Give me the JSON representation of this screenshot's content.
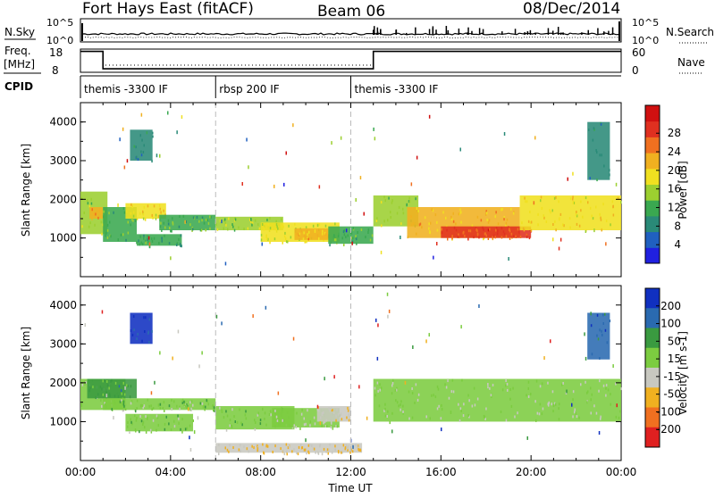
{
  "header": {
    "title": "Fort Hays East (fitACF)",
    "beam": "Beam 06",
    "date": "08/Dec/2014"
  },
  "top_panels": {
    "nsky_label": "N.Sky",
    "nsky_ticks": [
      "10^5",
      "10^0"
    ],
    "nsearch_label": "N.Search",
    "nsearch_ticks": [
      "10^5",
      "10^0"
    ],
    "freq_label": "Freq.",
    "freq_unit": "[MHz]",
    "freq_ticks": [
      "18",
      "8"
    ],
    "nave_label": "Nave",
    "nave_ticks": [
      "60",
      "0"
    ],
    "cpid_label": "CPID",
    "cpid_segments": [
      {
        "label": "themis -3300 IF",
        "start_hour": 0,
        "end_hour": 6
      },
      {
        "label": "rbsp 200 IF",
        "start_hour": 6,
        "end_hour": 12
      },
      {
        "label": "themis -3300 IF",
        "start_hour": 12,
        "end_hour": 24
      }
    ],
    "freq_series_hours": [
      0,
      1,
      1,
      13,
      13,
      24
    ],
    "freq_series_mhz": [
      17,
      17,
      9.5,
      9.5,
      17,
      17
    ]
  },
  "power_panel": {
    "ylabel": "Slant Range [km]",
    "yticks": [
      "1000",
      "2000",
      "3000",
      "4000"
    ],
    "colorbar_label": "Power [dB]",
    "colorbar_ticks": [
      "4",
      "8",
      "12",
      "16",
      "20",
      "24",
      "28"
    ],
    "colorbar_colors": [
      "#2020e0",
      "#2060c0",
      "#2a8a78",
      "#3aa850",
      "#9ccf30",
      "#f0e020",
      "#f0b020",
      "#f07020",
      "#e03020",
      "#d01010"
    ]
  },
  "velocity_panel": {
    "ylabel": "Slant Range [km]",
    "yticks": [
      "1000",
      "2000",
      "3000",
      "4000"
    ],
    "colorbar_label": "Velocity [m s-1]",
    "colorbar_ticks": [
      "200",
      "100",
      "50",
      "15",
      "-15",
      "-50",
      "-100",
      "-200"
    ],
    "colorbar_colors": [
      "#1030c0",
      "#2a6ab0",
      "#3a9a40",
      "#7ccc40",
      "#c8c8c0",
      "#f0b020",
      "#f07020",
      "#e02020"
    ]
  },
  "x_axis": {
    "xlabel": "Time UT",
    "xticks": [
      "00:00",
      "04:00",
      "08:00",
      "12:00",
      "16:00",
      "20:00",
      "00:00"
    ]
  },
  "chart_data": {
    "type": "heatmap",
    "x_unit": "hours UT",
    "xlim": [
      0,
      24
    ],
    "ylim": [
      0,
      4500
    ],
    "series": [
      {
        "name": "Power [dB]",
        "cells": [
          {
            "x0": 0,
            "x1": 1.2,
            "y0": 1100,
            "y1": 2200,
            "value": 14
          },
          {
            "x0": 0.4,
            "x1": 1.0,
            "y0": 1500,
            "y1": 1800,
            "value": 22
          },
          {
            "x0": 1.0,
            "x1": 2.5,
            "y0": 900,
            "y1": 1800,
            "value": 12
          },
          {
            "x0": 2.0,
            "x1": 3.8,
            "y0": 1500,
            "y1": 1900,
            "value": 18
          },
          {
            "x0": 2.5,
            "x1": 4.5,
            "y0": 800,
            "y1": 1100,
            "value": 10
          },
          {
            "x0": 3.5,
            "x1": 6.0,
            "y0": 1200,
            "y1": 1600,
            "value": 12
          },
          {
            "x0": 6.0,
            "x1": 9.0,
            "y0": 1200,
            "y1": 1550,
            "value": 14
          },
          {
            "x0": 8.0,
            "x1": 11.5,
            "y0": 900,
            "y1": 1400,
            "value": 16
          },
          {
            "x0": 9.5,
            "x1": 11.0,
            "y0": 950,
            "y1": 1250,
            "value": 20
          },
          {
            "x0": 11.0,
            "x1": 13.0,
            "y0": 850,
            "y1": 1300,
            "value": 12
          },
          {
            "x0": 13.0,
            "x1": 15.0,
            "y0": 1300,
            "y1": 2100,
            "value": 14
          },
          {
            "x0": 14.5,
            "x1": 19.5,
            "y0": 1000,
            "y1": 1800,
            "value": 20
          },
          {
            "x0": 16.0,
            "x1": 20.0,
            "y0": 1000,
            "y1": 1300,
            "value": 26
          },
          {
            "x0": 19.5,
            "x1": 24.0,
            "y0": 1200,
            "y1": 2100,
            "value": 18
          },
          {
            "x0": 2.2,
            "x1": 3.2,
            "y0": 3000,
            "y1": 3800,
            "value": 8
          },
          {
            "x0": 22.5,
            "x1": 23.5,
            "y0": 2500,
            "y1": 4000,
            "value": 8
          }
        ]
      },
      {
        "name": "Velocity [m s-1]",
        "cells": [
          {
            "x0": 0,
            "x1": 2.0,
            "y0": 1300,
            "y1": 2100,
            "value": 0
          },
          {
            "x0": 0.3,
            "x1": 2.5,
            "y0": 1600,
            "y1": 2100,
            "value": 80
          },
          {
            "x0": 1.0,
            "x1": 6.0,
            "y0": 1300,
            "y1": 1600,
            "value": 30
          },
          {
            "x0": 2.0,
            "x1": 5.0,
            "y0": 750,
            "y1": 1200,
            "value": 30
          },
          {
            "x0": 6.0,
            "x1": 9.5,
            "y0": 800,
            "y1": 1400,
            "value": 30
          },
          {
            "x0": 8.5,
            "x1": 11.5,
            "y0": 850,
            "y1": 1350,
            "value": 0
          },
          {
            "x0": 10.5,
            "x1": 12.0,
            "y0": 1000,
            "y1": 1400,
            "value": -60
          },
          {
            "x0": 6.0,
            "x1": 12.5,
            "y0": 200,
            "y1": 450,
            "value": -60
          },
          {
            "x0": 13.0,
            "x1": 24.0,
            "y0": 1000,
            "y1": 2100,
            "value": 0
          },
          {
            "x0": 2.2,
            "x1": 3.2,
            "y0": 3000,
            "y1": 3800,
            "value": 180
          },
          {
            "x0": 22.5,
            "x1": 23.5,
            "y0": 2600,
            "y1": 3800,
            "value": 160
          }
        ]
      }
    ]
  }
}
